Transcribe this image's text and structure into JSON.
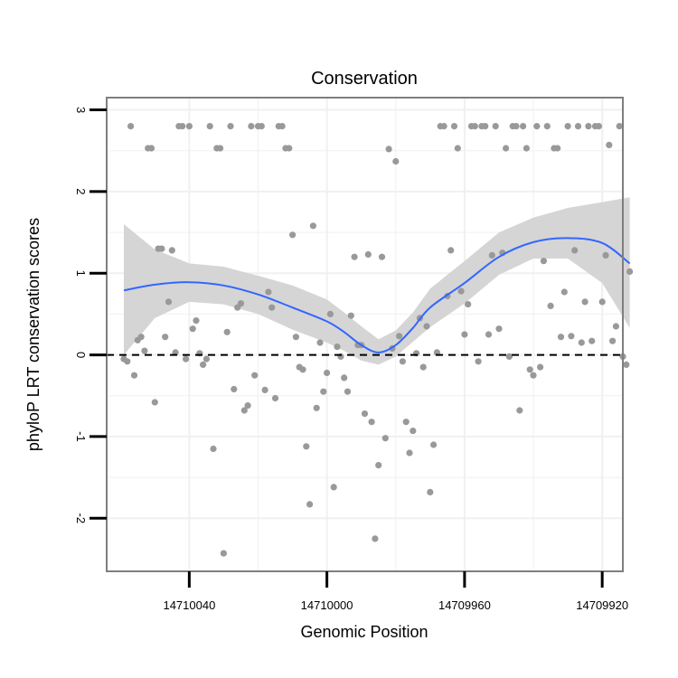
{
  "chart_data": {
    "type": "scatter",
    "title": "Conservation",
    "xlabel": "Genomic Position",
    "ylabel": "phyloP LRT conservation scores",
    "x_reversed": true,
    "xlim": [
      14710064,
      14709914
    ],
    "ylim": [
      -2.65,
      3.15
    ],
    "x_ticks": [
      14710040,
      14710000,
      14709960,
      14709920
    ],
    "x_tick_labels": [
      "14710040",
      "14710000",
      "14709960",
      "14709920"
    ],
    "y_ticks": [
      -2,
      -1,
      0,
      1,
      2,
      3
    ],
    "y_tick_labels": [
      "-2",
      "-1",
      "0",
      "1",
      "2",
      "3"
    ],
    "grid": true,
    "reference_line": {
      "y": 0,
      "style": "dashed"
    },
    "colors": {
      "points": "#999999",
      "smooth_line": "#3366ff",
      "confidence_band": "#d3d3d3",
      "panel_border": "#7f7f7f",
      "grid": "#f0f0f0",
      "reference_line": "#000000"
    },
    "points": [
      [
        14710059,
        -0.05
      ],
      [
        14710058,
        -0.08
      ],
      [
        14710057,
        2.8
      ],
      [
        14710056,
        -0.25
      ],
      [
        14710055,
        0.18
      ],
      [
        14710054,
        0.22
      ],
      [
        14710053,
        0.05
      ],
      [
        14710052,
        2.53
      ],
      [
        14710051,
        2.53
      ],
      [
        14710050,
        -0.58
      ],
      [
        14710049,
        1.3
      ],
      [
        14710048,
        1.3
      ],
      [
        14710047,
        0.22
      ],
      [
        14710046,
        0.65
      ],
      [
        14710045,
        1.28
      ],
      [
        14710044,
        0.03
      ],
      [
        14710043,
        2.8
      ],
      [
        14710042,
        2.8
      ],
      [
        14710041,
        -0.05
      ],
      [
        14710040,
        2.8
      ],
      [
        14710039,
        0.32
      ],
      [
        14710038,
        0.42
      ],
      [
        14710037,
        0.02
      ],
      [
        14710036,
        -0.12
      ],
      [
        14710035,
        -0.05
      ],
      [
        14710034,
        2.8
      ],
      [
        14710033,
        -1.15
      ],
      [
        14710032,
        2.53
      ],
      [
        14710031,
        2.53
      ],
      [
        14710030,
        -2.43
      ],
      [
        14710029,
        0.28
      ],
      [
        14710028,
        2.8
      ],
      [
        14710027,
        -0.42
      ],
      [
        14710026,
        0.58
      ],
      [
        14710025,
        0.63
      ],
      [
        14710024,
        -0.68
      ],
      [
        14710023,
        -0.62
      ],
      [
        14710022,
        2.8
      ],
      [
        14710021,
        -0.25
      ],
      [
        14710020,
        2.8
      ],
      [
        14710019,
        2.8
      ],
      [
        14710018,
        -0.43
      ],
      [
        14710017,
        0.77
      ],
      [
        14710016,
        0.58
      ],
      [
        14710015,
        -0.53
      ],
      [
        14710014,
        2.8
      ],
      [
        14710013,
        2.8
      ],
      [
        14710012,
        2.53
      ],
      [
        14710011,
        2.53
      ],
      [
        14710010,
        1.47
      ],
      [
        14710009,
        0.22
      ],
      [
        14710008,
        -0.15
      ],
      [
        14710007,
        -0.18
      ],
      [
        14710006,
        -1.12
      ],
      [
        14710005,
        -1.83
      ],
      [
        14710004,
        1.58
      ],
      [
        14710003,
        -0.65
      ],
      [
        14710002,
        0.15
      ],
      [
        14710001,
        -0.45
      ],
      [
        14710000,
        -0.22
      ],
      [
        14709999,
        0.5
      ],
      [
        14709998,
        -1.62
      ],
      [
        14709997,
        0.1
      ],
      [
        14709996,
        -0.02
      ],
      [
        14709995,
        -0.28
      ],
      [
        14709994,
        -0.45
      ],
      [
        14709993,
        0.48
      ],
      [
        14709992,
        1.2
      ],
      [
        14709991,
        0.12
      ],
      [
        14709990,
        0.12
      ],
      [
        14709989,
        -0.72
      ],
      [
        14709988,
        1.23
      ],
      [
        14709987,
        -0.82
      ],
      [
        14709986,
        -2.25
      ],
      [
        14709985,
        -1.35
      ],
      [
        14709984,
        1.2
      ],
      [
        14709983,
        -1.02
      ],
      [
        14709982,
        2.52
      ],
      [
        14709981,
        0.08
      ],
      [
        14709980,
        2.37
      ],
      [
        14709979,
        0.23
      ],
      [
        14709978,
        -0.08
      ],
      [
        14709977,
        -0.82
      ],
      [
        14709976,
        -1.2
      ],
      [
        14709975,
        -0.93
      ],
      [
        14709974,
        0.02
      ],
      [
        14709973,
        0.45
      ],
      [
        14709972,
        -0.15
      ],
      [
        14709971,
        0.35
      ],
      [
        14709970,
        -1.68
      ],
      [
        14709969,
        -1.1
      ],
      [
        14709968,
        0.03
      ],
      [
        14709967,
        2.8
      ],
      [
        14709966,
        2.8
      ],
      [
        14709965,
        0.72
      ],
      [
        14709964,
        1.28
      ],
      [
        14709963,
        2.8
      ],
      [
        14709962,
        2.53
      ],
      [
        14709961,
        0.78
      ],
      [
        14709960,
        0.25
      ],
      [
        14709959,
        0.62
      ],
      [
        14709958,
        2.8
      ],
      [
        14709957,
        2.8
      ],
      [
        14709956,
        -0.08
      ],
      [
        14709955,
        2.8
      ],
      [
        14709954,
        2.8
      ],
      [
        14709953,
        0.25
      ],
      [
        14709952,
        1.22
      ],
      [
        14709951,
        2.8
      ],
      [
        14709950,
        0.32
      ],
      [
        14709949,
        1.25
      ],
      [
        14709948,
        2.53
      ],
      [
        14709947,
        -0.02
      ],
      [
        14709946,
        2.8
      ],
      [
        14709945,
        2.8
      ],
      [
        14709944,
        -0.68
      ],
      [
        14709943,
        2.8
      ],
      [
        14709942,
        2.53
      ],
      [
        14709941,
        -0.18
      ],
      [
        14709940,
        -0.25
      ],
      [
        14709939,
        2.8
      ],
      [
        14709938,
        -0.15
      ],
      [
        14709937,
        1.15
      ],
      [
        14709936,
        2.8
      ],
      [
        14709935,
        0.6
      ],
      [
        14709934,
        2.53
      ],
      [
        14709933,
        2.53
      ],
      [
        14709932,
        0.22
      ],
      [
        14709931,
        0.77
      ],
      [
        14709930,
        2.8
      ],
      [
        14709929,
        0.23
      ],
      [
        14709928,
        1.28
      ],
      [
        14709927,
        2.8
      ],
      [
        14709926,
        0.15
      ],
      [
        14709925,
        0.65
      ],
      [
        14709924,
        2.8
      ],
      [
        14709923,
        0.17
      ],
      [
        14709922,
        2.8
      ],
      [
        14709921,
        2.8
      ],
      [
        14709920,
        0.65
      ],
      [
        14709919,
        1.22
      ],
      [
        14709918,
        2.57
      ],
      [
        14709917,
        0.17
      ],
      [
        14709916,
        0.35
      ],
      [
        14709915,
        2.8
      ],
      [
        14709914,
        -0.02
      ],
      [
        14709913,
        -0.12
      ],
      [
        14709912,
        1.02
      ]
    ],
    "smooth": {
      "x": [
        14710059,
        14710050,
        14710040,
        14710030,
        14710020,
        14710010,
        14710000,
        14709995,
        14709990,
        14709985,
        14709980,
        14709975,
        14709970,
        14709960,
        14709950,
        14709940,
        14709930,
        14709920,
        14709912
      ],
      "y": [
        0.79,
        0.86,
        0.89,
        0.85,
        0.74,
        0.58,
        0.41,
        0.28,
        0.12,
        0.03,
        0.12,
        0.33,
        0.58,
        0.88,
        1.2,
        1.38,
        1.43,
        1.37,
        1.12
      ],
      "lower": [
        0.0,
        0.45,
        0.65,
        0.62,
        0.5,
        0.31,
        0.15,
        0.05,
        -0.07,
        -0.12,
        -0.02,
        0.16,
        0.34,
        0.63,
        0.98,
        1.18,
        1.18,
        0.88,
        0.33
      ],
      "upper": [
        1.6,
        1.29,
        1.12,
        1.08,
        0.97,
        0.85,
        0.68,
        0.52,
        0.35,
        0.19,
        0.3,
        0.52,
        0.81,
        1.15,
        1.5,
        1.68,
        1.8,
        1.87,
        1.93
      ]
    }
  }
}
